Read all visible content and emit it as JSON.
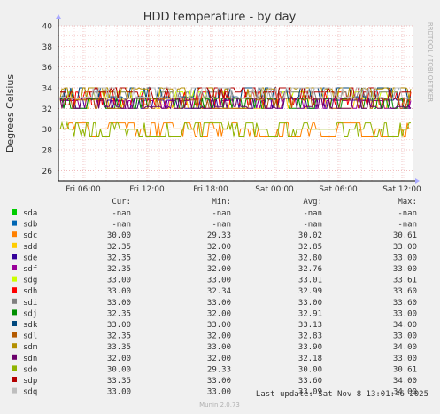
{
  "chart_data": {
    "type": "line",
    "title": "HDD temperature - by day",
    "ylabel": "Degrees Celsius",
    "ylim": [
      25,
      40
    ],
    "yticks": [
      "26",
      "28",
      "30",
      "32",
      "34",
      "36",
      "38",
      "40"
    ],
    "xticks": [
      "Fri 06:00",
      "Fri 12:00",
      "Fri 18:00",
      "Sat 00:00",
      "Sat 06:00",
      "Sat 12:00"
    ],
    "side_text": "RRDTOOL / TOBI OETIKER",
    "grid": true,
    "columns": [
      "Cur:",
      "Min:",
      "Avg:",
      "Max:"
    ],
    "series": [
      {
        "name": "sda",
        "color": "#00cc00",
        "cur": "-nan",
        "min": "-nan",
        "avg": "-nan",
        "max": "-nan"
      },
      {
        "name": "sdb",
        "color": "#0066b3",
        "cur": "-nan",
        "min": "-nan",
        "avg": "-nan",
        "max": "-nan"
      },
      {
        "name": "sdc",
        "color": "#ff8000",
        "cur": "30.00",
        "min": "29.33",
        "avg": "30.02",
        "max": "30.61"
      },
      {
        "name": "sdd",
        "color": "#ffcc00",
        "cur": "32.35",
        "min": "32.00",
        "avg": "32.85",
        "max": "33.00"
      },
      {
        "name": "sde",
        "color": "#330099",
        "cur": "32.35",
        "min": "32.00",
        "avg": "32.80",
        "max": "33.00"
      },
      {
        "name": "sdf",
        "color": "#990099",
        "cur": "32.35",
        "min": "32.00",
        "avg": "32.76",
        "max": "33.00"
      },
      {
        "name": "sdg",
        "color": "#ccff00",
        "cur": "33.00",
        "min": "33.00",
        "avg": "33.01",
        "max": "33.61"
      },
      {
        "name": "sdh",
        "color": "#ff0000",
        "cur": "33.00",
        "min": "32.34",
        "avg": "32.99",
        "max": "33.60"
      },
      {
        "name": "sdi",
        "color": "#808080",
        "cur": "33.00",
        "min": "33.00",
        "avg": "33.00",
        "max": "33.60"
      },
      {
        "name": "sdj",
        "color": "#008f00",
        "cur": "32.35",
        "min": "32.00",
        "avg": "32.91",
        "max": "33.00"
      },
      {
        "name": "sdk",
        "color": "#00487d",
        "cur": "33.00",
        "min": "33.00",
        "avg": "33.13",
        "max": "34.00"
      },
      {
        "name": "sdl",
        "color": "#b35a00",
        "cur": "32.35",
        "min": "32.00",
        "avg": "32.83",
        "max": "33.00"
      },
      {
        "name": "sdm",
        "color": "#b38f00",
        "cur": "33.35",
        "min": "33.00",
        "avg": "33.90",
        "max": "34.00"
      },
      {
        "name": "sdn",
        "color": "#6b006b",
        "cur": "32.00",
        "min": "32.00",
        "avg": "32.18",
        "max": "33.00"
      },
      {
        "name": "sdo",
        "color": "#8fb300",
        "cur": "30.00",
        "min": "29.33",
        "avg": "30.00",
        "max": "30.61"
      },
      {
        "name": "sdp",
        "color": "#b30000",
        "cur": "33.35",
        "min": "33.00",
        "avg": "33.60",
        "max": "34.00"
      },
      {
        "name": "sdq",
        "color": "#bebebe",
        "cur": "33.00",
        "min": "33.00",
        "avg": "33.09",
        "max": "34.00"
      }
    ],
    "last_update": "Last update: Sat Nov  8 13:01:46 2025",
    "footer": "Munin 2.0.73"
  }
}
